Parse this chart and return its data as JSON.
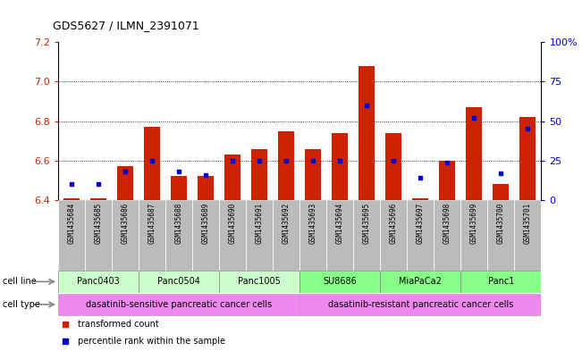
{
  "title": "GDS5627 / ILMN_2391071",
  "samples": [
    "GSM1435684",
    "GSM1435685",
    "GSM1435686",
    "GSM1435687",
    "GSM1435688",
    "GSM1435689",
    "GSM1435690",
    "GSM1435691",
    "GSM1435692",
    "GSM1435693",
    "GSM1435694",
    "GSM1435695",
    "GSM1435696",
    "GSM1435697",
    "GSM1435698",
    "GSM1435699",
    "GSM1435700",
    "GSM1435701"
  ],
  "bar_values": [
    6.41,
    6.41,
    6.57,
    6.77,
    6.52,
    6.52,
    6.63,
    6.66,
    6.75,
    6.66,
    6.74,
    7.08,
    6.74,
    6.41,
    6.6,
    6.87,
    6.48,
    6.82
  ],
  "percentile_values": [
    10,
    10,
    18,
    25,
    18,
    16,
    25,
    25,
    25,
    25,
    25,
    60,
    25,
    14,
    24,
    52,
    17,
    45
  ],
  "ymin": 6.4,
  "ymax": 7.2,
  "yticks": [
    6.4,
    6.6,
    6.8,
    7.0,
    7.2
  ],
  "right_yticks": [
    0,
    25,
    50,
    75,
    100
  ],
  "right_yticklabels": [
    "0",
    "25",
    "50",
    "75",
    "100%"
  ],
  "bar_color": "#cc2200",
  "percentile_color": "#0000cc",
  "cell_line_sensitive_color": "#ccffcc",
  "cell_line_resistant_color": "#88ff88",
  "cell_lines": [
    {
      "label": "Panc0403",
      "start": 0,
      "end": 2,
      "color": "#ccffcc"
    },
    {
      "label": "Panc0504",
      "start": 3,
      "end": 5,
      "color": "#ccffcc"
    },
    {
      "label": "Panc1005",
      "start": 6,
      "end": 8,
      "color": "#ccffcc"
    },
    {
      "label": "SU8686",
      "start": 9,
      "end": 11,
      "color": "#88ff88"
    },
    {
      "label": "MiaPaCa2",
      "start": 12,
      "end": 14,
      "color": "#88ff88"
    },
    {
      "label": "Panc1",
      "start": 15,
      "end": 17,
      "color": "#88ff88"
    }
  ],
  "cell_types": [
    {
      "label": "dasatinib-sensitive pancreatic cancer cells",
      "start": 0,
      "end": 8,
      "color": "#ee88ee"
    },
    {
      "label": "dasatinib-resistant pancreatic cancer cells",
      "start": 9,
      "end": 17,
      "color": "#ee88ee"
    }
  ],
  "legend_items": [
    {
      "label": "transformed count",
      "color": "#cc2200"
    },
    {
      "label": "percentile rank within the sample",
      "color": "#0000cc"
    }
  ],
  "left_axis_color": "#cc2200",
  "right_axis_color": "#0000cc",
  "grid_color": "#000000",
  "bg_color": "#ffffff",
  "sample_bg_color": "#bbbbbb"
}
